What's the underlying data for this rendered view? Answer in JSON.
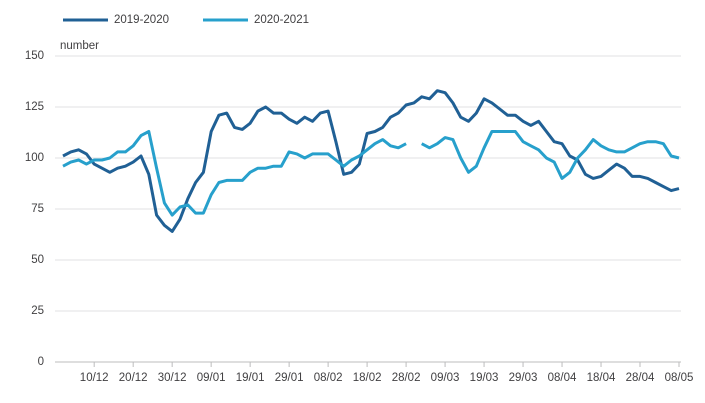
{
  "chart_data": {
    "type": "line",
    "y_label": "number",
    "categories": [
      null,
      null,
      null,
      null,
      "10/12",
      null,
      null,
      null,
      null,
      "20/12",
      null,
      null,
      null,
      null,
      "30/12",
      null,
      null,
      null,
      null,
      "09/01",
      null,
      null,
      null,
      null,
      "19/01",
      null,
      null,
      null,
      null,
      "29/01",
      null,
      null,
      null,
      null,
      "08/02",
      null,
      null,
      null,
      null,
      "18/02",
      null,
      null,
      null,
      null,
      "28/02",
      null,
      null,
      null,
      null,
      "09/03",
      null,
      null,
      null,
      null,
      "19/03",
      null,
      null,
      null,
      null,
      "29/03",
      null,
      null,
      null,
      null,
      "08/04",
      null,
      null,
      null,
      null,
      "18/04",
      null,
      null,
      null,
      null,
      "28/04",
      null,
      null,
      null,
      null,
      "08/05"
    ],
    "series": [
      {
        "name": "2019-2020",
        "color": "#206095",
        "values": [
          101,
          103,
          104,
          102,
          97,
          95,
          93,
          95,
          96,
          98,
          101,
          92,
          72,
          67,
          64,
          70,
          80,
          88,
          93,
          113,
          121,
          122,
          115,
          114,
          117,
          123,
          125,
          122,
          122,
          119,
          117,
          120,
          118,
          122,
          123,
          108,
          92,
          93,
          97,
          112,
          113,
          115,
          120,
          122,
          126,
          127,
          130,
          129,
          133,
          132,
          127,
          120,
          118,
          122,
          129,
          127,
          124,
          121,
          121,
          118,
          116,
          118,
          113,
          108,
          107,
          101,
          99,
          92,
          90,
          91,
          94,
          97,
          95,
          91,
          91,
          90,
          88,
          86,
          84,
          85
        ]
      },
      {
        "name": "2020-2021",
        "color": "#27a0cc",
        "values": [
          96,
          98,
          99,
          97,
          99,
          99,
          100,
          103,
          103,
          106,
          111,
          113,
          95,
          78,
          72,
          76,
          77,
          73,
          73,
          82,
          88,
          89,
          89,
          89,
          93,
          95,
          95,
          96,
          96,
          103,
          102,
          100,
          102,
          102,
          102,
          99,
          96,
          99,
          101,
          104,
          107,
          109,
          106,
          105,
          107,
          null,
          107,
          105,
          107,
          110,
          109,
          100,
          93,
          96,
          105,
          113,
          113,
          113,
          113,
          108,
          106,
          104,
          100,
          98,
          90,
          93,
          100,
          104,
          109,
          106,
          104,
          103,
          103,
          105,
          107,
          108,
          108,
          107,
          101,
          100
        ]
      }
    ],
    "ylim": [
      0,
      150
    ],
    "yticks": [
      0,
      25,
      50,
      75,
      100,
      125,
      150
    ],
    "grid": true,
    "legend": "top-left"
  }
}
